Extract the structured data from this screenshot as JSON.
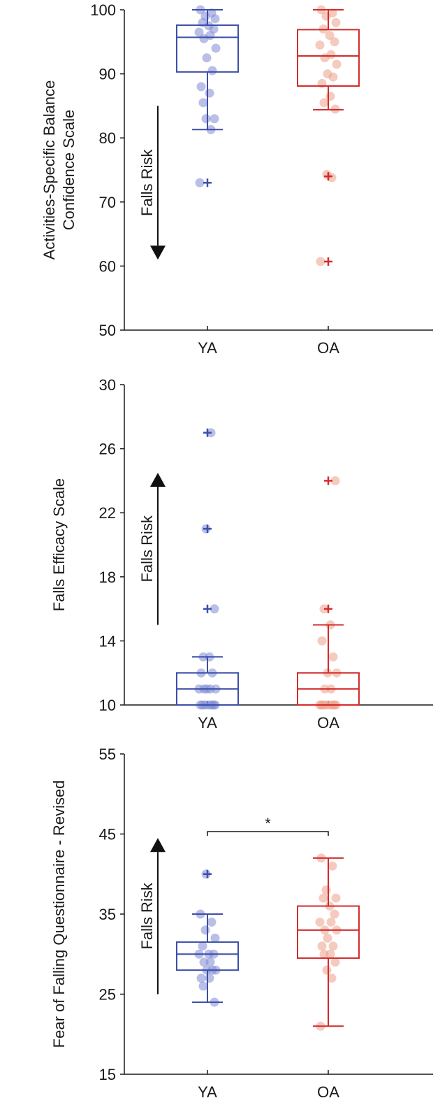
{
  "chart_data": [
    {
      "type": "box",
      "ylabel_lines": [
        "Activities-Specific Balance",
        "Confidence Scale"
      ],
      "ylim": [
        50,
        100
      ],
      "yticks": [
        50,
        60,
        70,
        80,
        90,
        100
      ],
      "categories": [
        "YA",
        "OA"
      ],
      "falls_risk": {
        "label": "Falls Risk",
        "direction": "down",
        "from": 85,
        "to": 61
      },
      "groups": [
        {
          "name": "YA",
          "color": "#3d4fa8",
          "point_color": "#7f8ad4",
          "box": {
            "q1": 90.3,
            "median": 95.7,
            "q3": 97.6,
            "whisker_low": 81.3,
            "whisker_high": 100
          },
          "outliers": [
            73
          ],
          "points": [
            100,
            99.5,
            99,
            98.6,
            98,
            97.5,
            97,
            96.5,
            96,
            95.5,
            94,
            92.5,
            90.5,
            88,
            87,
            85.5,
            83,
            83,
            81.3,
            73
          ]
        },
        {
          "name": "OA",
          "color": "#d32b2b",
          "point_color": "#eda18b",
          "box": {
            "q1": 88.1,
            "median": 92.8,
            "q3": 96.9,
            "whisker_low": 84.4,
            "whisker_high": 100
          },
          "outliers": [
            74,
            60.7
          ],
          "points": [
            100,
            99.5,
            99,
            98,
            97,
            96,
            95,
            94.5,
            93,
            92.5,
            91.5,
            90,
            89.5,
            88.5,
            86.5,
            85.5,
            84.5,
            74.3,
            73.8,
            60.7
          ]
        }
      ]
    },
    {
      "type": "box",
      "ylabel_lines": [
        "Falls Efficacy Scale"
      ],
      "ylim": [
        10,
        30
      ],
      "yticks": [
        10,
        14,
        18,
        22,
        26,
        30
      ],
      "categories": [
        "YA",
        "OA"
      ],
      "falls_risk": {
        "label": "Falls Risk",
        "direction": "up",
        "from": 15,
        "to": 24.5
      },
      "groups": [
        {
          "name": "YA",
          "color": "#3d4fa8",
          "point_color": "#7f8ad4",
          "box": {
            "q1": 10,
            "median": 11,
            "q3": 12,
            "whisker_low": 10,
            "whisker_high": 13
          },
          "outliers": [
            27,
            21,
            16
          ],
          "points": [
            10,
            10,
            10,
            10,
            10,
            10,
            10,
            11,
            11,
            11,
            11,
            11,
            12,
            12,
            13,
            13,
            16,
            21,
            27
          ]
        },
        {
          "name": "OA",
          "color": "#d32b2b",
          "point_color": "#eda18b",
          "box": {
            "q1": 10,
            "median": 11,
            "q3": 12,
            "whisker_low": 10,
            "whisker_high": 15
          },
          "outliers": [
            24,
            16
          ],
          "points": [
            10,
            10,
            10,
            10,
            10,
            10,
            10,
            10,
            11,
            11,
            12,
            12,
            13,
            14,
            15,
            16,
            24
          ]
        }
      ]
    },
    {
      "type": "box",
      "ylabel_lines": [
        "Fear of Falling Questionnaire - Revised"
      ],
      "ylim": [
        15,
        55
      ],
      "yticks": [
        15,
        25,
        35,
        45,
        55
      ],
      "categories": [
        "YA",
        "OA"
      ],
      "falls_risk": {
        "label": "Falls Risk",
        "direction": "up",
        "from": 25,
        "to": 44.5
      },
      "significance": {
        "label": "*",
        "y": 45.3
      },
      "groups": [
        {
          "name": "YA",
          "color": "#3d4fa8",
          "point_color": "#7f8ad4",
          "box": {
            "q1": 28,
            "median": 30,
            "q3": 31.5,
            "whisker_low": 24,
            "whisker_high": 35
          },
          "outliers": [
            40
          ],
          "points": [
            35,
            34,
            33,
            32,
            31,
            30,
            30,
            30,
            29,
            29,
            28,
            28,
            28,
            27,
            27,
            26,
            24,
            40
          ]
        },
        {
          "name": "OA",
          "color": "#d32b2b",
          "point_color": "#eda18b",
          "box": {
            "q1": 29.5,
            "median": 33,
            "q3": 36,
            "whisker_low": 21,
            "whisker_high": 42
          },
          "outliers": [],
          "points": [
            42,
            41,
            38,
            37,
            37,
            36,
            35,
            34,
            34,
            33,
            33,
            32,
            31,
            31,
            30,
            30,
            29,
            28,
            27,
            21
          ]
        }
      ]
    }
  ]
}
